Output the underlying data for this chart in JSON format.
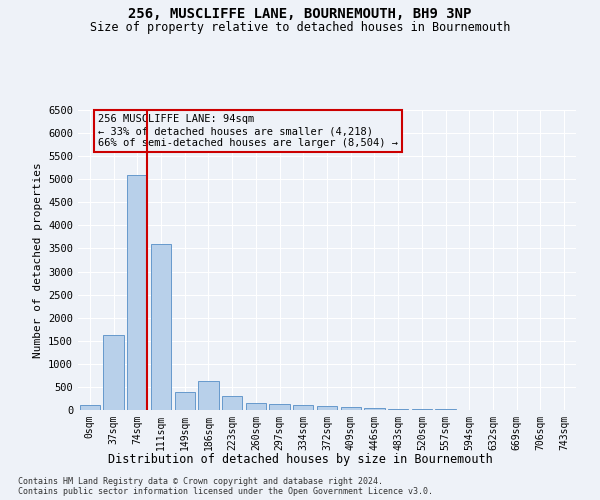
{
  "title": "256, MUSCLIFFE LANE, BOURNEMOUTH, BH9 3NP",
  "subtitle": "Size of property relative to detached houses in Bournemouth",
  "xlabel": "Distribution of detached houses by size in Bournemouth",
  "ylabel": "Number of detached properties",
  "footer_line1": "Contains HM Land Registry data © Crown copyright and database right 2024.",
  "footer_line2": "Contains public sector information licensed under the Open Government Licence v3.0.",
  "bar_labels": [
    "0sqm",
    "37sqm",
    "74sqm",
    "111sqm",
    "149sqm",
    "186sqm",
    "223sqm",
    "260sqm",
    "297sqm",
    "334sqm",
    "372sqm",
    "409sqm",
    "446sqm",
    "483sqm",
    "520sqm",
    "557sqm",
    "594sqm",
    "632sqm",
    "669sqm",
    "706sqm",
    "743sqm"
  ],
  "bar_values": [
    100,
    1620,
    5100,
    3600,
    400,
    620,
    300,
    150,
    130,
    110,
    80,
    60,
    40,
    30,
    20,
    12,
    8,
    5,
    5,
    5,
    5
  ],
  "bar_color": "#b8d0ea",
  "bar_edge_color": "#6699cc",
  "ylim": [
    0,
    6500
  ],
  "yticks": [
    0,
    500,
    1000,
    1500,
    2000,
    2500,
    3000,
    3500,
    4000,
    4500,
    5000,
    5500,
    6000,
    6500
  ],
  "annotation_title": "256 MUSCLIFFE LANE: 94sqm",
  "annotation_line1": "← 33% of detached houses are smaller (4,218)",
  "annotation_line2": "66% of semi-detached houses are larger (8,504) →",
  "red_line_color": "#cc0000",
  "red_line_x": 2.43,
  "background_color": "#eef2f8",
  "grid_color": "#ffffff"
}
